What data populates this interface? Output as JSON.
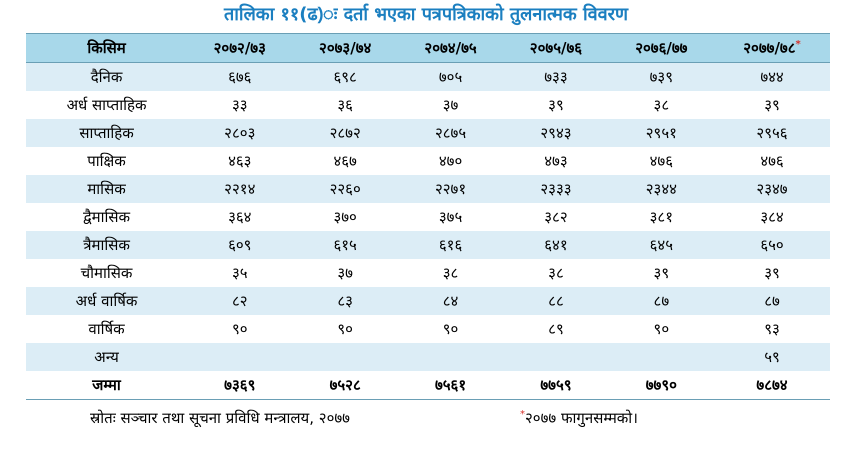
{
  "title": "तालिका ११(ढ)ः दर्ता भएका पत्रपत्रिकाको तुलनात्मक विवरण",
  "table": {
    "header": [
      "किसिम",
      "२०७२/७३",
      "२०७३/७४",
      "२०७४/७५",
      "२०७५/७६",
      "२०७६/७७",
      "२०७७/७८"
    ],
    "header_note_mark": "*",
    "rows": [
      [
        "दैनिक",
        "६७६",
        "६९८",
        "७०५",
        "७३३",
        "७३९",
        "७४४"
      ],
      [
        "अर्ध साप्ताहिक",
        "३३",
        "३६",
        "३७",
        "३९",
        "३८",
        "३९"
      ],
      [
        "साप्ताहिक",
        "२८०३",
        "२८७२",
        "२८७५",
        "२९४३",
        "२९५१",
        "२९५६"
      ],
      [
        "पाक्षिक",
        "४६३",
        "४६७",
        "४७०",
        "४७३",
        "४७६",
        "४७६"
      ],
      [
        "मासिक",
        "२२१४",
        "२२६०",
        "२२७१",
        "२३३३",
        "२३४४",
        "२३४७"
      ],
      [
        "द्वैमासिक",
        "३६४",
        "३७०",
        "३७५",
        "३८२",
        "३८१",
        "३८४"
      ],
      [
        "त्रैमासिक",
        "६०९",
        "६१५",
        "६१६",
        "६४१",
        "६४५",
        "६५०"
      ],
      [
        "चौमासिक",
        "३५",
        "३७",
        "३८",
        "३८",
        "३९",
        "३९"
      ],
      [
        "अर्ध वार्षिक",
        "८२",
        "८३",
        "८४",
        "८८",
        "८७",
        "८७"
      ],
      [
        "वार्षिक",
        "९०",
        "९०",
        "९०",
        "८९",
        "९०",
        "९३"
      ],
      [
        "अन्य",
        null,
        null,
        null,
        null,
        null,
        "५९"
      ]
    ],
    "total": [
      "जम्मा",
      "७३६९",
      "७५२८",
      "७५६१",
      "७७५९",
      "७७९०",
      "७८७४"
    ]
  },
  "footer": {
    "source": "स्रोतः सञ्चार तथा सूचना प्रविधि मन्त्रालय, २०७७",
    "note_mark": "*",
    "note": "२०७७ फागुनसम्मको।"
  }
}
